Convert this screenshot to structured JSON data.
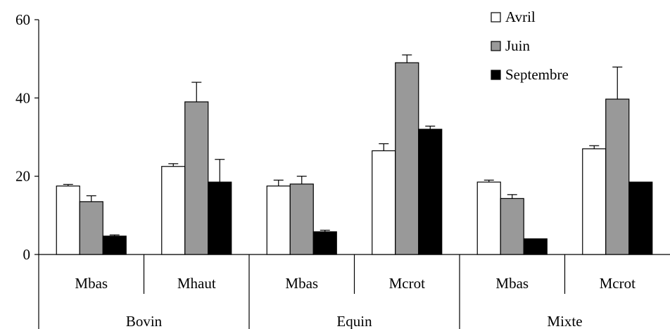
{
  "chart_data": {
    "type": "bar",
    "title": "",
    "xlabel": "",
    "ylabel": "",
    "ylim": [
      0,
      60
    ],
    "yticks": [
      0,
      20,
      40,
      60
    ],
    "grid": false,
    "legend_position": "top-right",
    "categories": [
      "Mbas",
      "Mhaut",
      "Mbas",
      "Mcrot",
      "Mbas",
      "Mcrot"
    ],
    "groups": [
      {
        "label": "Bovin",
        "span": 2
      },
      {
        "label": "Equin",
        "span": 2
      },
      {
        "label": "Mixte",
        "span": 2
      }
    ],
    "series": [
      {
        "name": "Avril",
        "color": "#ffffff",
        "values": [
          17.5,
          22.5,
          17.5,
          26.5,
          18.5,
          27.0
        ],
        "errors": [
          0.4,
          0.7,
          1.5,
          1.8,
          0.5,
          0.8
        ]
      },
      {
        "name": "Juin",
        "color": "#999999",
        "values": [
          13.5,
          39.0,
          18.0,
          49.0,
          14.3,
          39.7
        ],
        "errors": [
          1.5,
          5.0,
          2.0,
          2.0,
          1.0,
          8.2
        ]
      },
      {
        "name": "Septembre",
        "color": "#000000",
        "values": [
          4.7,
          18.5,
          5.8,
          32.0,
          4.0,
          18.5
        ],
        "errors": [
          0.3,
          5.8,
          0.4,
          0.8,
          0.0,
          0.0
        ]
      }
    ]
  }
}
